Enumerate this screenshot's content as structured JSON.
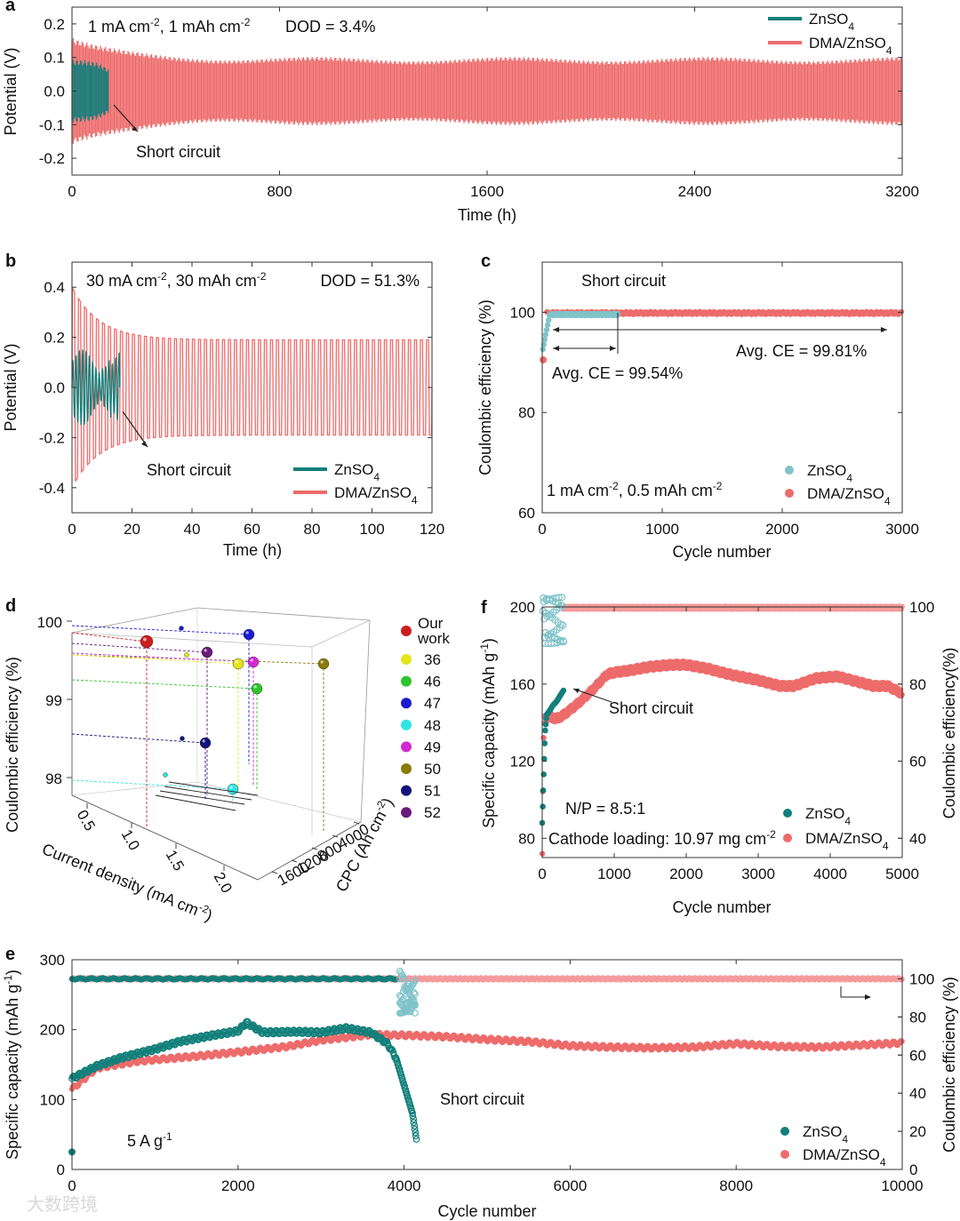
{
  "colors": {
    "zn": "#127f7a",
    "dma": "#ee6b6b",
    "dma_light": "#f59a9a",
    "zn_light": "#7fc3c9"
  },
  "watermark": "大数跨境",
  "legend": {
    "zn": "ZnSO",
    "dma": "DMA/ZnSO",
    "sub": "4"
  },
  "panel_a": {
    "letter": "a",
    "cond_a": "1 mA cm",
    "sup1": "-2",
    "cond_b": ", 1 mAh cm",
    "sup2": "-2",
    "dod": "DOD = 3.4%",
    "annotation": "Short circuit",
    "chart_data": {
      "type": "line",
      "xlabel": "Time (h)",
      "ylabel": "Potential (V)",
      "xlim": [
        0,
        3200
      ],
      "ylim": [
        -0.25,
        0.25
      ],
      "x_ticks": [
        0,
        800,
        1600,
        2400,
        3200
      ],
      "y_ticks": [
        -0.2,
        -0.1,
        0.0,
        0.1,
        0.2
      ],
      "y_tick_labels": [
        "-0.2",
        "-0.1",
        "0.0",
        "0.1",
        "0.2"
      ],
      "series": [
        {
          "name": "ZnSO4",
          "short_circuit_time": 140,
          "amplitude": 0.085
        },
        {
          "name": "DMA/ZnSO4",
          "end_time": 3200,
          "amplitude_start": 0.15,
          "amplitude_end": 0.09
        }
      ]
    }
  },
  "panel_b": {
    "letter": "b",
    "cond_a": "30 mA cm",
    "sup1": "-2",
    "cond_b": ", 30 mAh cm",
    "sup2": "-2",
    "dod": "DOD = 51.3%",
    "annotation": "Short circuit",
    "chart_data": {
      "type": "line",
      "xlabel": "Time (h)",
      "ylabel": "Potential (V)",
      "xlim": [
        0,
        120
      ],
      "ylim": [
        -0.5,
        0.5
      ],
      "x_ticks": [
        0,
        20,
        40,
        60,
        80,
        100,
        120
      ],
      "y_ticks": [
        -0.4,
        -0.2,
        0.0,
        0.2,
        0.4
      ],
      "y_tick_labels": [
        "-0.4",
        "-0.2",
        "0.0",
        "0.2",
        "0.4"
      ],
      "series": [
        {
          "name": "ZnSO4",
          "short_circuit_time": 16,
          "amplitude": 0.1
        },
        {
          "name": "DMA/ZnSO4",
          "cycle_period_h": 2,
          "amplitude_start": 0.4,
          "amplitude_end": 0.19
        }
      ]
    }
  },
  "panel_c": {
    "letter": "c",
    "annotation": "Short circuit",
    "avg_zn": "Avg. CE = 99.54%",
    "avg_dma": "Avg. CE = 99.81%",
    "cond_a": "1 mA cm",
    "sup1": "-2",
    "cond_b": ", 0.5 mAh cm",
    "sup2": "-2",
    "chart_data": {
      "type": "scatter",
      "xlabel": "Cycle number",
      "ylabel": "Coulombic efficiency (%)",
      "xlim": [
        0,
        3000
      ],
      "ylim": [
        60,
        110
      ],
      "x_ticks": [
        0,
        1000,
        2000,
        3000
      ],
      "y_ticks": [
        60,
        80,
        100
      ],
      "series": [
        {
          "name": "ZnSO4",
          "short_circuit_cycle": 630,
          "avg_ce": 99.54
        },
        {
          "name": "DMA/ZnSO4",
          "end_cycle": 3000,
          "avg_ce": 99.81,
          "first_cycle_ce": 90.5
        }
      ]
    }
  },
  "panel_d": {
    "letter": "d",
    "chart_data": {
      "type": "scatter",
      "zlabel": "Coulombic efficiency (%)",
      "xlabel": "Current density (mA cm",
      "xlabel_sup": "-2",
      "ylabel": "CPC (Ah cm",
      "ylabel_sup": "-2",
      "z_ticks": [
        98,
        99,
        100
      ],
      "x_ticks": [
        "0.5",
        "1.0",
        "1.5",
        "2.0"
      ],
      "y_ticks": [
        "0",
        "400",
        "800",
        "1200",
        "1600"
      ],
      "legend": [
        {
          "label": "Our",
          "label2": "work",
          "color": "#cc1e1e"
        },
        {
          "label": "36",
          "color": "#e5e51a"
        },
        {
          "label": "46",
          "color": "#2ec42e"
        },
        {
          "label": "47",
          "color": "#1a1ad0"
        },
        {
          "label": "48",
          "color": "#2fe5e5"
        },
        {
          "label": "49",
          "color": "#d22ad2"
        },
        {
          "label": "50",
          "color": "#8a7a0a"
        },
        {
          "label": "51",
          "color": "#12127a"
        },
        {
          "label": "52",
          "color": "#6a1a7a"
        }
      ]
    }
  },
  "panel_f": {
    "letter": "f",
    "annotation": "Short circuit",
    "np": "N/P = 8.5:1",
    "loading_a": "Cathode loading: 10.97 mg cm",
    "loading_sup": "-2",
    "chart_data": {
      "type": "scatter",
      "xlabel": "Cycle number",
      "ylabel": "Specific capacity (mAh g",
      "ylabel_sup": "-1",
      "y2label": "Coulombic efficiency(%)",
      "xlim": [
        0,
        5000
      ],
      "ylim": [
        70,
        200
      ],
      "y2lim": [
        35,
        100
      ],
      "x_ticks": [
        0,
        1000,
        2000,
        3000,
        4000,
        5000
      ],
      "y_ticks": [
        80,
        120,
        160,
        200
      ],
      "y2_ticks": [
        40,
        60,
        80,
        100
      ],
      "series": [
        {
          "name": "ZnSO4 capacity",
          "x": [
            0,
            20,
            40,
            60,
            100,
            150,
            200,
            250,
            300
          ],
          "y": [
            88,
            112,
            135,
            144,
            146,
            149,
            151,
            154,
            157
          ]
        },
        {
          "name": "DMA/ZnSO4 capacity",
          "x": [
            0,
            20,
            50,
            100,
            200,
            300,
            500,
            700,
            900,
            1000,
            1200,
            1500,
            1800,
            2000,
            2300,
            2600,
            3000,
            3300,
            3500,
            3800,
            4100,
            4300,
            4600,
            4800,
            5000
          ],
          "y": [
            72,
            140,
            143,
            143,
            142,
            144,
            150,
            157,
            165,
            166,
            167,
            169,
            170,
            170,
            168,
            165,
            162,
            159,
            159,
            163,
            164,
            162,
            159,
            159,
            155
          ]
        },
        {
          "name": "ZnSO4 CE",
          "short_circuit_cycle": 300,
          "ce": 99.5
        },
        {
          "name": "DMA/ZnSO4 CE",
          "end_cycle": 5000,
          "ce": 99.8
        }
      ]
    }
  },
  "panel_e": {
    "letter": "e",
    "annotation": "Short circuit",
    "rate_a": "5 A g",
    "rate_sup": "-1",
    "chart_data": {
      "type": "scatter",
      "xlabel": "Cycle number",
      "ylabel": "Specific capacity (mAh g",
      "ylabel_sup": "-1",
      "y2label": "Coulombic efficiency (%)",
      "xlim": [
        0,
        10000
      ],
      "ylim": [
        0,
        300
      ],
      "y2lim": [
        0,
        110
      ],
      "x_ticks": [
        0,
        2000,
        4000,
        6000,
        8000,
        10000
      ],
      "y_ticks": [
        0,
        100,
        200,
        300
      ],
      "y2_ticks": [
        0,
        20,
        40,
        60,
        80,
        100
      ],
      "series": [
        {
          "name": "ZnSO4 capacity",
          "x": [
            0,
            300,
            600,
            1000,
            1300,
            1700,
            2000,
            2100,
            2300,
            2700,
            3000,
            3300,
            3600,
            3800,
            3900,
            4000,
            4050,
            4100,
            4150
          ],
          "y": [
            130,
            148,
            160,
            172,
            183,
            192,
            198,
            210,
            196,
            197,
            196,
            202,
            196,
            180,
            160,
            120,
            100,
            80,
            40
          ]
        },
        {
          "name": "DMA/ZnSO4 capacity",
          "x": [
            0,
            300,
            800,
            1500,
            2000,
            2600,
            3000,
            3600,
            4000,
            4500,
            5000,
            5500,
            6000,
            6500,
            7000,
            7500,
            8000,
            8500,
            9000,
            9500,
            10000
          ],
          "y": [
            115,
            145,
            155,
            162,
            168,
            176,
            185,
            193,
            192,
            190,
            186,
            183,
            177,
            175,
            174,
            175,
            180,
            176,
            175,
            178,
            181
          ]
        },
        {
          "name": "ZnSO4 CE",
          "short_circuit_cycle": 4150,
          "ce": 100
        },
        {
          "name": "DMA/ZnSO4 CE",
          "end_cycle": 10000,
          "ce": 100
        }
      ]
    }
  }
}
